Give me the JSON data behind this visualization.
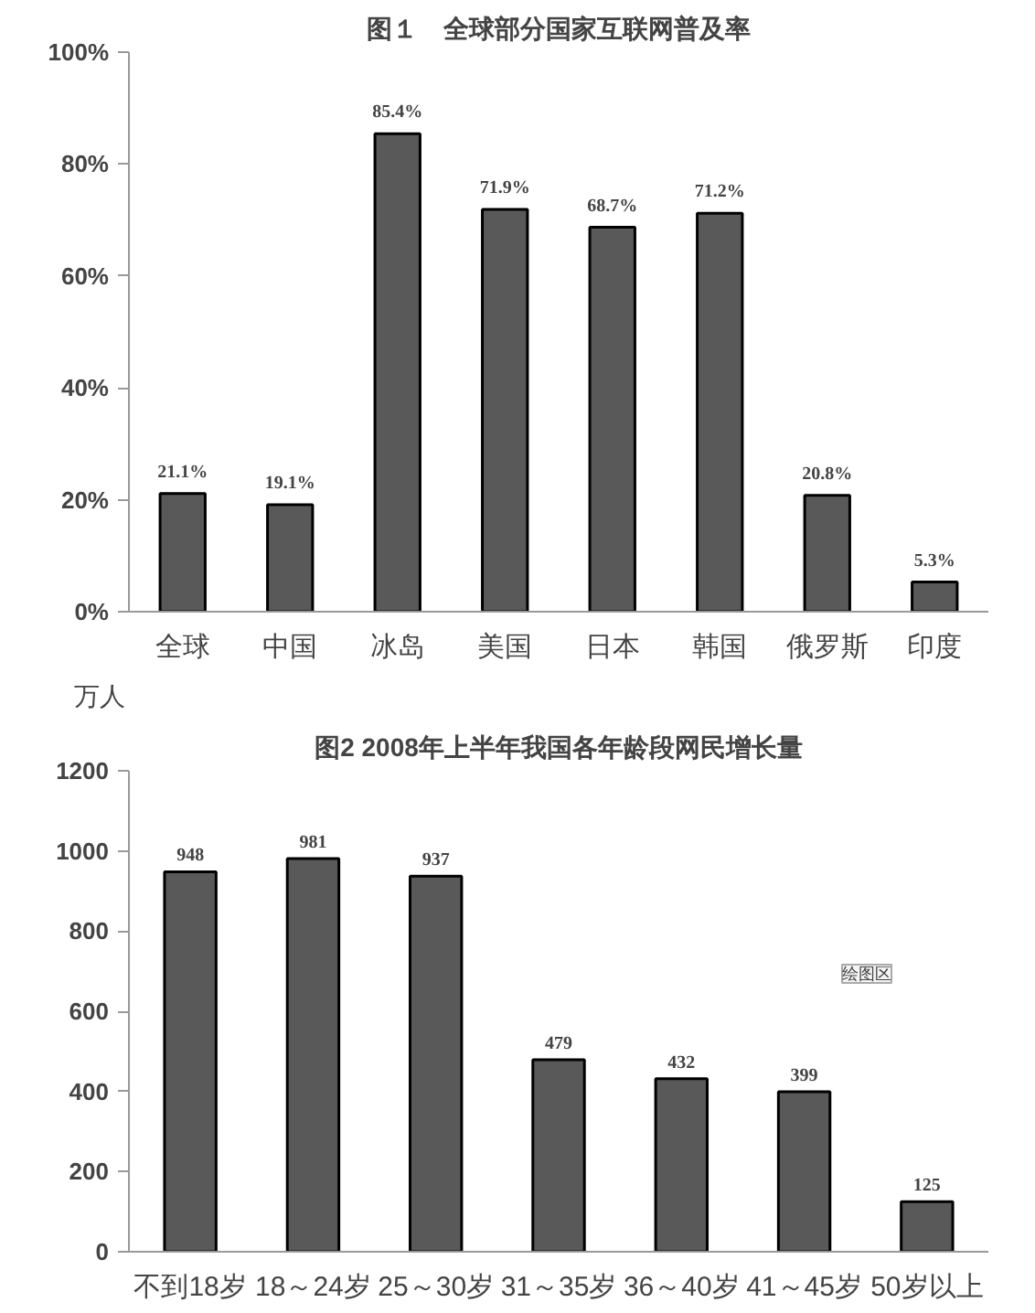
{
  "chart_data": [
    {
      "type": "bar",
      "title": "图１　全球部分国家互联网普及率",
      "categories": [
        "全球",
        "中国",
        "冰岛",
        "美国",
        "日本",
        "韩国",
        "俄罗斯",
        "印度"
      ],
      "values": [
        21.1,
        19.1,
        85.4,
        71.9,
        68.7,
        71.2,
        20.8,
        5.3
      ],
      "value_labels": [
        "21.1%",
        "19.1%",
        "85.4%",
        "71.9%",
        "68.7%",
        "71.2%",
        "20.8%",
        "5.3%"
      ],
      "color": "#595959",
      "ylim": [
        0,
        100
      ],
      "yticks": [
        {
          "value": 0,
          "label": "0%"
        },
        {
          "value": 20,
          "label": "20%"
        },
        {
          "value": 40,
          "label": "40%"
        },
        {
          "value": 60,
          "label": "60%"
        },
        {
          "value": 80,
          "label": "80%"
        },
        {
          "value": 100,
          "label": "100%"
        }
      ],
      "grid": false
    },
    {
      "type": "bar",
      "title": "图2 2008年上半年我国各年龄段网民增长量",
      "ylabel": "万人",
      "categories": [
        "不到18岁",
        "18～24岁",
        "25～30岁",
        "31～35岁",
        "36～40岁",
        "41～45岁",
        "50岁以上"
      ],
      "values": [
        948,
        981,
        937,
        479,
        432,
        399,
        125
      ],
      "data_labels": true,
      "color": "#595959",
      "ylim": [
        0,
        1200
      ],
      "yticks": [
        0,
        200,
        400,
        600,
        800,
        1000,
        1200
      ],
      "grid": false,
      "annotations": [
        "绘图区"
      ]
    }
  ]
}
